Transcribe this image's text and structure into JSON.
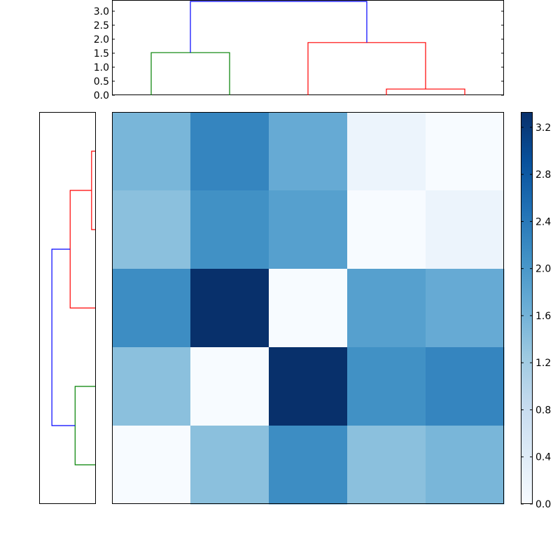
{
  "chart_data": [
    {
      "type": "dendrogram",
      "orientation": "top",
      "ylim": [
        0,
        3.4
      ],
      "yticks": [
        "0.0",
        "0.5",
        "1.0",
        "1.5",
        "2.0",
        "2.5",
        "3.0"
      ],
      "ytick_values": [
        0,
        0.5,
        1.0,
        1.5,
        2.0,
        2.5,
        3.0
      ],
      "leaf_count": 5,
      "links": [
        {
          "left_leaf": 3,
          "right_leaf": 4,
          "height": 0.22,
          "left_base": 0,
          "right_base": 0,
          "color": "#ff0000"
        },
        {
          "left_leaf": 2,
          "right_leaf": 3.5,
          "height": 1.88,
          "left_base": 0,
          "right_base": 0.22,
          "color": "#ff0000"
        },
        {
          "left_leaf": 0,
          "right_leaf": 1,
          "height": 1.52,
          "left_base": 0,
          "right_base": 0,
          "color": "#008000"
        },
        {
          "left_leaf": 0.5,
          "right_leaf": 2.75,
          "height": 3.35,
          "left_base": 1.52,
          "right_base": 1.88,
          "color": "#0000ff"
        }
      ]
    },
    {
      "type": "dendrogram",
      "orientation": "left",
      "xlim": [
        0,
        3.4
      ],
      "leaf_count": 5,
      "links": [
        {
          "top_leaf": 0,
          "bottom_leaf": 1,
          "height": 0.22,
          "top_base": 0,
          "bottom_base": 0,
          "color": "#ff0000"
        },
        {
          "top_leaf": 0.5,
          "bottom_leaf": 2,
          "height": 1.52,
          "top_base": 0.22,
          "bottom_base": 0,
          "color": "#ff0000"
        },
        {
          "top_leaf": 3,
          "bottom_leaf": 4,
          "height": 1.22,
          "top_base": 0,
          "bottom_base": 0,
          "color": "#008000"
        },
        {
          "top_leaf": 1.25,
          "bottom_leaf": 3.5,
          "height": 2.63,
          "top_base": 1.52,
          "bottom_base": 1.22,
          "color": "#0000ff"
        }
      ]
    },
    {
      "type": "heatmap",
      "colormap": "Blues",
      "vmin": 0.0,
      "vmax": 3.33,
      "values": [
        [
          1.55,
          2.25,
          1.72,
          0.18,
          0.0
        ],
        [
          1.4,
          2.1,
          1.88,
          0.0,
          0.18
        ],
        [
          2.15,
          3.33,
          0.0,
          1.88,
          1.72
        ],
        [
          1.4,
          0.0,
          3.33,
          2.1,
          2.25
        ],
        [
          0.0,
          1.4,
          2.15,
          1.4,
          1.55
        ]
      ],
      "colorbar_ticks": [
        "0.0",
        "0.4",
        "0.8",
        "1.2",
        "1.6",
        "2.0",
        "2.4",
        "2.8",
        "3.2"
      ],
      "colorbar_tick_values": [
        0.0,
        0.4,
        0.8,
        1.2,
        1.6,
        2.0,
        2.4,
        2.8,
        3.2
      ],
      "grid": false
    }
  ]
}
